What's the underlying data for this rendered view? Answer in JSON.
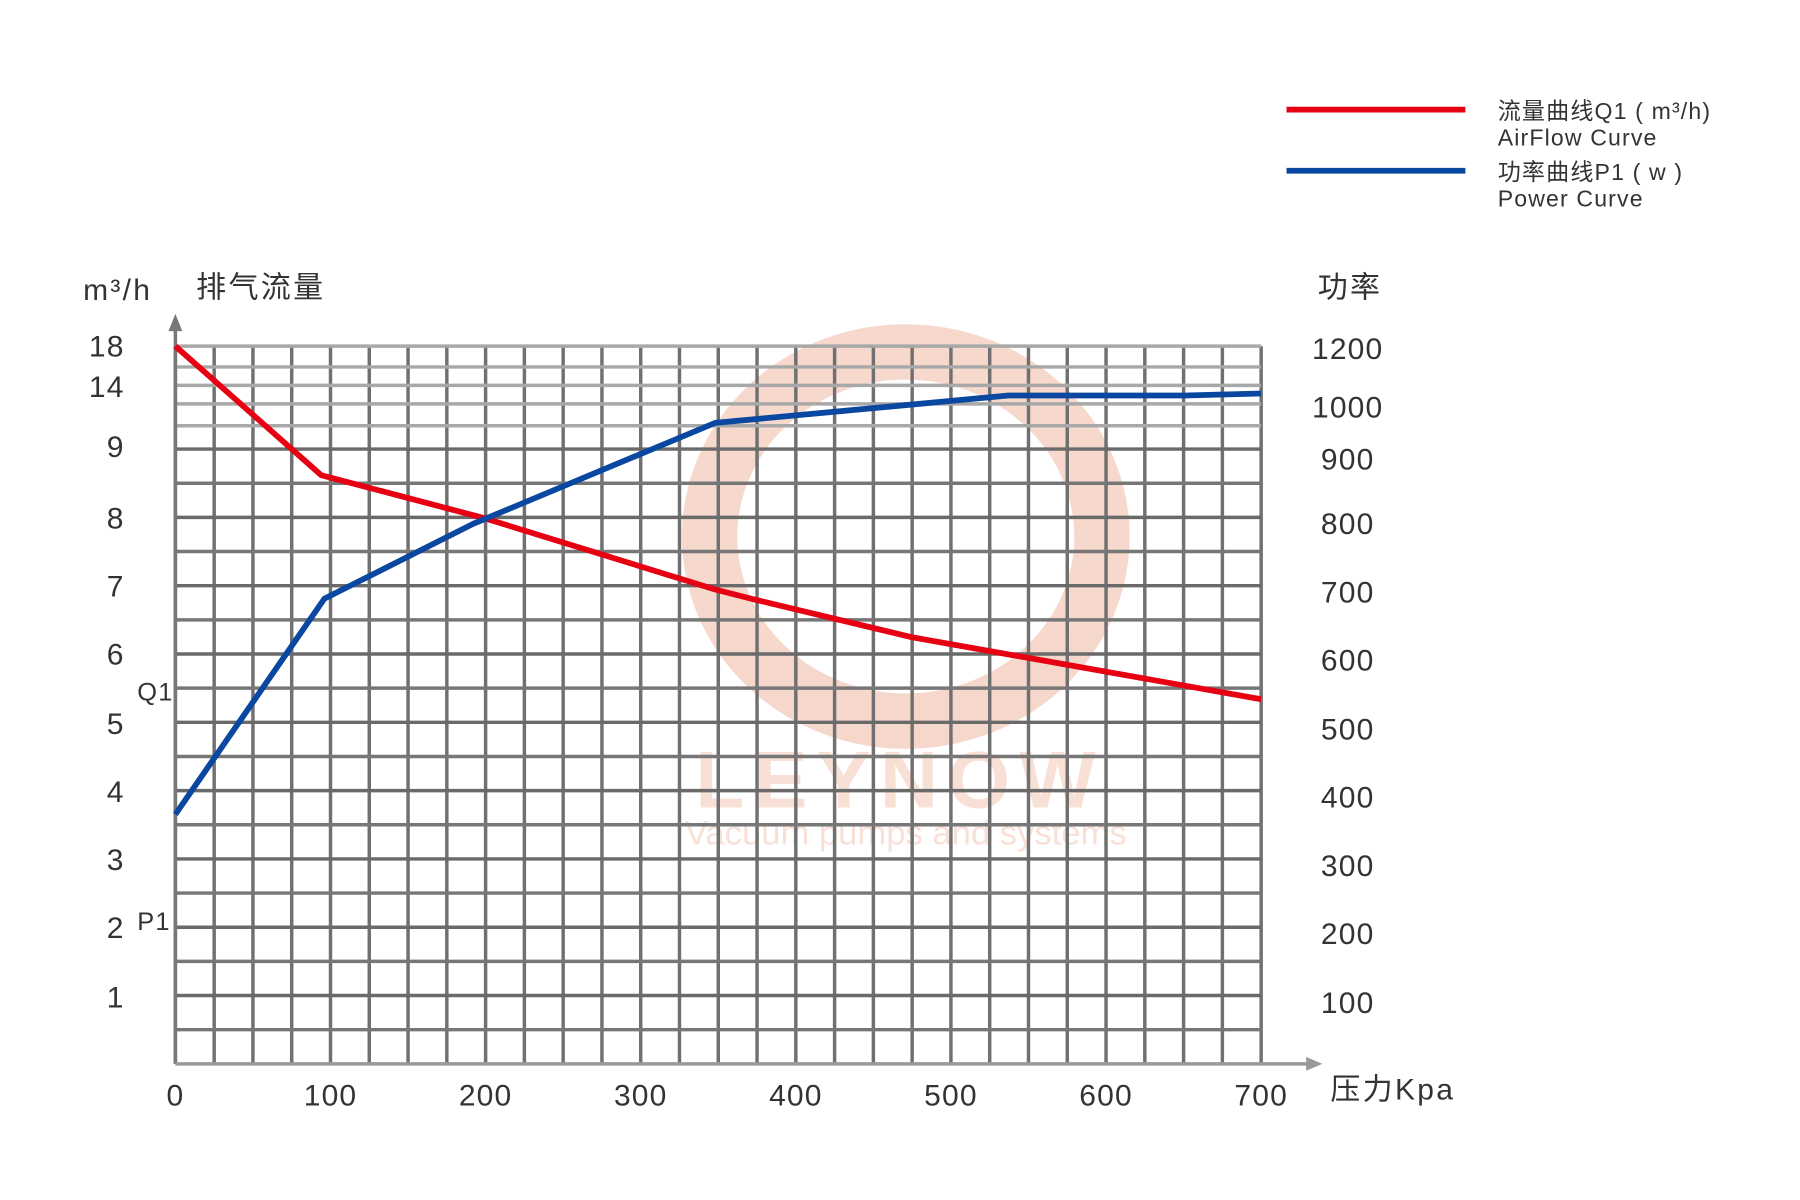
{
  "legend": {
    "items": [
      {
        "label_cn": "流量曲线Q1 ( m³/h)",
        "label_en": "AirFlow Curve",
        "color": "#e60012"
      },
      {
        "label_cn": "功率曲线P1 ( w )",
        "label_en": "Power Curve",
        "color": "#0a47a0"
      }
    ]
  },
  "watermark": {
    "brand": "LEYNOW",
    "tagline": "Vacuum pumps and systems",
    "color": "#f0c0aa"
  },
  "chart_data": {
    "type": "line",
    "title": "",
    "xlabel": "压力Kpa",
    "ylabel_left_unit": "m³/h",
    "ylabel_left": "排气流量",
    "ylabel_right": "功率",
    "left_series_tag": "Q1",
    "right_series_tag": "P1",
    "xlim": [
      0,
      700
    ],
    "x_ticks": [
      "0",
      "100",
      "200",
      "300",
      "400",
      "500",
      "600",
      "700"
    ],
    "y_left_ticks": [
      "18",
      "14",
      "9",
      "8",
      "7",
      "6",
      "5",
      "4",
      "3",
      "2",
      "1"
    ],
    "y_right_ticks": [
      "1200",
      "1000",
      "900",
      "800",
      "700",
      "600",
      "500",
      "400",
      "300",
      "200",
      "100"
    ],
    "grid": true,
    "legend_position": "top-right",
    "series": [
      {
        "name": "流量曲线Q1 ( m³/h)",
        "axis": "left",
        "color": "#e60012",
        "x": [
          0,
          94,
          199,
          348,
          374,
          475,
          700
        ],
        "y": [
          18,
          8.6,
          8.0,
          6.95,
          6.8,
          6.25,
          5.35
        ]
      },
      {
        "name": "功率曲线P1 ( w )",
        "axis": "right",
        "color": "#0a47a0",
        "x": [
          0,
          96,
          192,
          348,
          537,
          651,
          700
        ],
        "y": [
          375,
          690,
          800,
          970,
          1040,
          1040,
          1047
        ]
      }
    ]
  }
}
